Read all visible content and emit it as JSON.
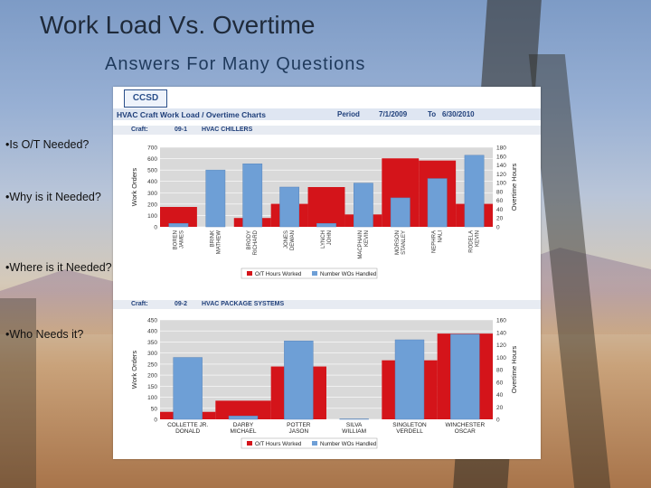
{
  "slide": {
    "title": "Work Load Vs. Overtime",
    "subtitle": "Answers For Many Questions",
    "bullets": [
      "•Is O/T Needed?",
      "•Why is it Needed?",
      "•Where is it Needed?",
      "•Who Needs it?"
    ]
  },
  "report": {
    "logo": "CCSD",
    "heading": "HVAC Craft Work Load / Overtime Charts",
    "period_label": "Period",
    "period_start": "7/1/2009",
    "period_to": "To",
    "period_end": "6/30/2010",
    "craft_label": "Craft:"
  },
  "chart_data": [
    {
      "type": "bar",
      "craft_code": "09-1",
      "craft_name": "HVAC CHILLERS",
      "categories": [
        "BOREN JAMES",
        "BRINK MATHEW",
        "BRODY RICHARD",
        "JONES DEWAN",
        "LYNCH JOHN",
        "MACPHAIN KEVIN",
        "MORSON STANLEY",
        "NEPHRA NALI",
        "RODELA KEVIN"
      ],
      "ylabel": "Work Orders",
      "y2label": "Overtime Hours",
      "ylim": [
        0,
        700
      ],
      "y2lim": [
        0,
        180
      ],
      "yticks": [
        0,
        100,
        200,
        300,
        400,
        500,
        600,
        700
      ],
      "y2ticks": [
        0,
        20,
        40,
        60,
        80,
        100,
        120,
        140,
        160,
        180
      ],
      "series": [
        {
          "name": "O/T Hours Worked",
          "axis": "right",
          "color": "#d4141a",
          "values": [
            45,
            0,
            20,
            52,
            90,
            28,
            155,
            150,
            52
          ]
        },
        {
          "name": "Number WOs Handled",
          "axis": "left",
          "color": "#6e9fd6",
          "values": [
            30,
            500,
            555,
            350,
            30,
            385,
            255,
            425,
            630
          ]
        }
      ],
      "legend": "bottom"
    },
    {
      "type": "bar",
      "craft_code": "09-2",
      "craft_name": "HVAC PACKAGE SYSTEMS",
      "categories": [
        "COLLETTE JR. DONALD",
        "DARBY MICHAEL",
        "POTTER JASON",
        "SILVA WILLIAM",
        "SINGLETON VERDELL",
        "WINCHESTER OSCAR"
      ],
      "ylabel": "Work Orders",
      "y2label": "Overtime Hours",
      "ylim": [
        0,
        450
      ],
      "y2lim": [
        0,
        160
      ],
      "yticks": [
        0,
        50,
        100,
        150,
        200,
        250,
        300,
        350,
        400,
        450
      ],
      "y2ticks": [
        0,
        20,
        40,
        60,
        80,
        100,
        120,
        140,
        160
      ],
      "series": [
        {
          "name": "O/T Hours Worked",
          "axis": "right",
          "color": "#d4141a",
          "values": [
            12,
            30,
            85,
            0,
            95,
            138
          ]
        },
        {
          "name": "Number WOs Handled",
          "axis": "left",
          "color": "#6e9fd6",
          "values": [
            280,
            15,
            355,
            2,
            360,
            385
          ]
        }
      ],
      "legend": "bottom"
    }
  ],
  "colors": {
    "wo_bar": "#6e9fd6",
    "ot_bar": "#d4141a",
    "plot_bg": "#d9d9d9",
    "header_text": "#1f3f7a"
  }
}
